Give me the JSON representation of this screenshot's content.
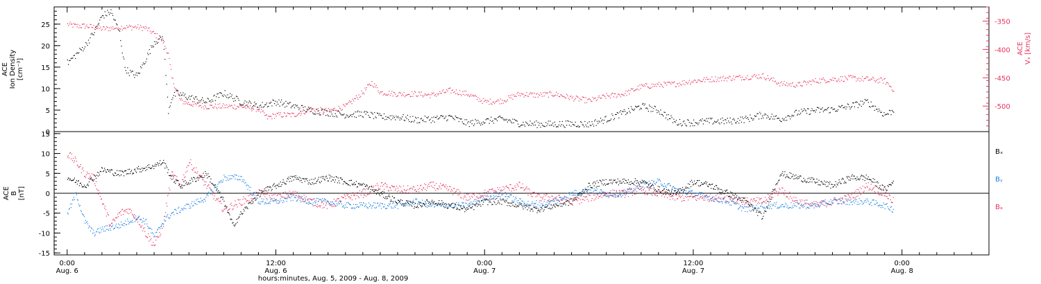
{
  "chart_data": [
    {
      "type": "scatter",
      "panel": "ion_density_and_velocity",
      "ylabel_lines": [
        "ACE",
        "Ion Density",
        "[cm⁻³]"
      ],
      "ylim": [
        0,
        29
      ],
      "yticks": [
        0,
        5,
        10,
        15,
        20,
        25
      ],
      "y2label_lines": [
        "ACE",
        "Vₓ [km/s]"
      ],
      "y2lim": [
        -545,
        -325
      ],
      "y2ticks": [
        -350,
        -400,
        -450,
        -500
      ],
      "y2_reversed": true,
      "series": [
        {
          "axis": "left",
          "color": "#000000",
          "x": [
            0,
            0.5,
            1,
            1.5,
            2,
            2.5,
            3,
            3.3,
            3.5,
            4,
            4.5,
            5,
            5.5,
            5.8,
            6,
            6.3,
            7,
            8,
            9,
            10,
            11,
            12,
            13,
            14,
            15,
            16,
            17,
            18,
            19,
            20,
            21,
            22,
            23,
            24,
            25,
            26,
            27,
            28,
            29,
            30,
            31,
            32,
            33,
            34,
            35,
            36,
            37,
            38,
            39,
            40,
            41,
            42,
            43,
            44,
            45,
            46,
            47,
            47.5
          ],
          "y": [
            16,
            18,
            20,
            23,
            27,
            28,
            23,
            15,
            14,
            13,
            17,
            21,
            22,
            5,
            8,
            9,
            8,
            7,
            9,
            7,
            6,
            7,
            6,
            5,
            4.5,
            4,
            4.2,
            3.5,
            3.5,
            2.8,
            3,
            3.5,
            2,
            2.5,
            3,
            2,
            1.8,
            1.8,
            1.9,
            1.8,
            3,
            4.5,
            6,
            5,
            2.2,
            2.2,
            2.5,
            2.5,
            3,
            4,
            3,
            4.5,
            5,
            5.2,
            6,
            7,
            4,
            5
          ]
        },
        {
          "axis": "right",
          "color": "#e8315b",
          "x": [
            0,
            0.5,
            1,
            1.5,
            2,
            2.5,
            3,
            3.5,
            4,
            4.5,
            5,
            5.5,
            5.8,
            6,
            6.5,
            7,
            8,
            9,
            10,
            11,
            11.5,
            12,
            13,
            14,
            15,
            16,
            17,
            17.5,
            18,
            19,
            20,
            21,
            22,
            23,
            24,
            25,
            26,
            27,
            28,
            29,
            30,
            31,
            32,
            33,
            34,
            35,
            36,
            37,
            38,
            39,
            40,
            41,
            42,
            43,
            44,
            45,
            46,
            47,
            47.5
          ],
          "y": [
            -355,
            -358,
            -358,
            -360,
            -363,
            -362,
            -360,
            -360,
            -360,
            -362,
            -372,
            -385,
            -408,
            -450,
            -490,
            -495,
            -500,
            -500,
            -500,
            -505,
            -520,
            -515,
            -515,
            -505,
            -508,
            -500,
            -475,
            -458,
            -475,
            -478,
            -478,
            -480,
            -472,
            -478,
            -492,
            -490,
            -478,
            -480,
            -478,
            -485,
            -490,
            -482,
            -478,
            -465,
            -462,
            -460,
            -455,
            -452,
            -450,
            -448,
            -446,
            -460,
            -462,
            -455,
            -452,
            -450,
            -452,
            -455,
            -470
          ]
        }
      ]
    },
    {
      "type": "scatter",
      "panel": "magnetic_field",
      "ylabel_lines": [
        "ACE",
        "B",
        "[nT]"
      ],
      "ylim": [
        -15.5,
        15.5
      ],
      "yticks": [
        -15,
        -10,
        -5,
        0,
        5,
        10,
        15
      ],
      "zero_line": true,
      "legend": [
        {
          "label": "Bₓ",
          "color": "#000000"
        },
        {
          "label": "Bᵧ",
          "color": "#1a7fe0"
        },
        {
          "label": "Bₔ",
          "color": "#e8315b"
        }
      ],
      "series": [
        {
          "name": "Bx",
          "color": "#000000",
          "x": [
            0,
            1,
            2,
            3,
            4,
            5,
            5.5,
            6,
            6.5,
            7,
            8,
            9,
            9.5,
            10,
            11,
            12,
            13,
            14,
            15,
            16,
            17,
            18,
            19,
            20,
            21,
            22,
            23,
            24,
            25,
            26,
            27,
            28,
            29,
            30,
            31,
            32,
            33,
            34,
            35,
            36,
            37,
            38,
            39,
            40,
            40.5,
            41,
            42,
            43,
            44,
            45,
            46,
            47,
            47.5
          ],
          "y": [
            4,
            2,
            6,
            5,
            6,
            7,
            8,
            4,
            2,
            3,
            5,
            -2,
            -8,
            -5,
            0,
            2,
            4,
            3,
            4,
            3,
            2,
            0,
            -2,
            -3,
            -2,
            -3,
            -4,
            -2,
            -2,
            -3,
            -4,
            -3,
            -2,
            2,
            3,
            3,
            3,
            1,
            0,
            3,
            2,
            0,
            -2,
            -6,
            0,
            5,
            4,
            3,
            2,
            4,
            4,
            1,
            3
          ]
        },
        {
          "name": "By",
          "color": "#1a7fe0",
          "x": [
            0,
            0.5,
            1,
            1.5,
            2,
            3,
            4,
            4.5,
            5,
            5.5,
            6,
            7,
            8,
            9,
            10,
            11,
            12,
            13,
            14,
            15,
            16,
            17,
            18,
            19,
            20,
            21,
            22,
            23,
            24,
            25,
            26,
            27,
            28,
            29,
            30,
            31,
            32,
            33,
            34,
            35,
            36,
            37,
            38,
            39,
            40,
            41,
            42,
            43,
            44,
            45,
            46,
            47,
            47.5
          ],
          "y": [
            -5,
            0,
            -7,
            -10,
            -9,
            -8,
            -6,
            -7,
            -11,
            -7,
            -5,
            -3,
            -1,
            4,
            4,
            -2,
            -2,
            -1,
            -2,
            -2,
            -3,
            -3,
            -3,
            -3,
            -2,
            -3,
            -3,
            -3,
            -1,
            0,
            -2,
            -3,
            -2,
            0,
            1,
            0,
            0,
            2,
            3,
            1,
            0,
            -1,
            -2,
            -4,
            -3,
            -3,
            -3,
            -3,
            -2,
            -2,
            -2,
            -3,
            -4
          ]
        },
        {
          "name": "Bz",
          "color": "#e8315b",
          "x": [
            0,
            0.5,
            1,
            1.5,
            2,
            2.5,
            3,
            3.5,
            4,
            4.5,
            5,
            5.5,
            6,
            6.5,
            7,
            8,
            9,
            10,
            11,
            12,
            13,
            14,
            15,
            16,
            17,
            18,
            19,
            20,
            21,
            22,
            23,
            24,
            25,
            26,
            27,
            28,
            29,
            30,
            31,
            32,
            33,
            34,
            35,
            36,
            37,
            38,
            39,
            40,
            41,
            42,
            43,
            44,
            45,
            46,
            47,
            47.5
          ],
          "y": [
            10,
            8,
            5,
            4,
            -2,
            -8,
            -5,
            -4,
            -6,
            -10,
            -13,
            -8,
            5,
            2,
            8,
            2,
            -4,
            -2,
            0,
            -1,
            0,
            -2,
            -3,
            -1,
            0,
            2,
            1,
            1,
            2,
            1,
            -1,
            0,
            1,
            2,
            -1,
            -1,
            -2,
            -1,
            0,
            0,
            1,
            0,
            -1,
            -1,
            -1,
            -1,
            -2,
            -2,
            1,
            -2,
            -3,
            -2,
            -1,
            2,
            0,
            -2
          ]
        }
      ]
    }
  ],
  "x_axis": {
    "xlim": [
      -0.75,
      53
    ],
    "ticks": [
      {
        "x": 0,
        "time": "0:00",
        "date": "Aug. 6"
      },
      {
        "x": 12,
        "time": "12:00",
        "date": "Aug. 6"
      },
      {
        "x": 24,
        "time": "0:00",
        "date": "Aug. 7"
      },
      {
        "x": 36,
        "time": "12:00",
        "date": "Aug. 7"
      },
      {
        "x": 48,
        "time": "0:00",
        "date": "Aug. 8"
      }
    ],
    "title": "hours:minutes, Aug.  5, 2009 - Aug.  8, 2009"
  }
}
